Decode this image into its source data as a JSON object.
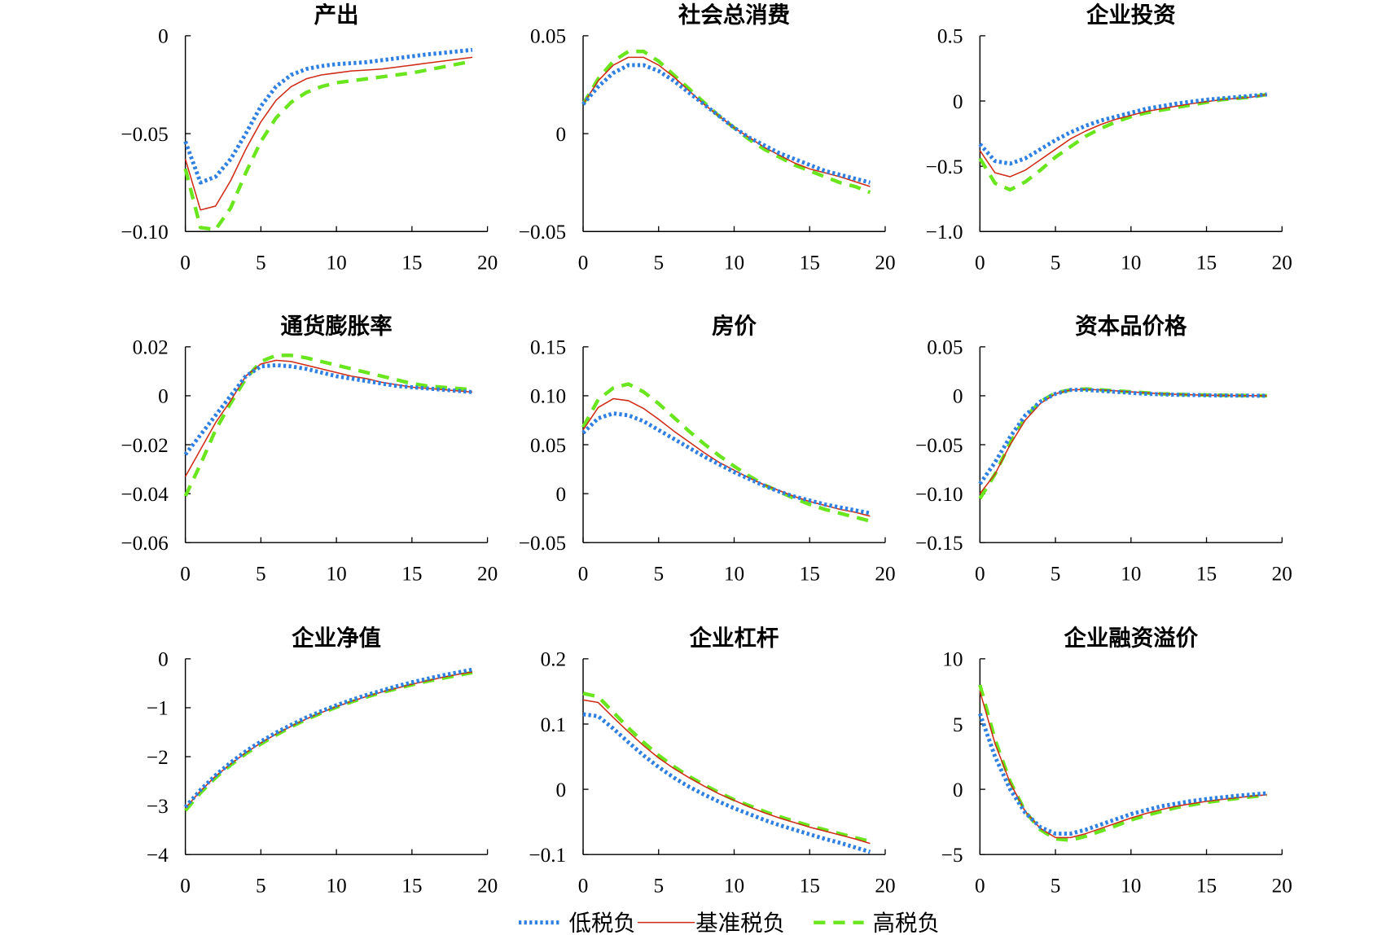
{
  "legend": [
    {
      "name": "低税负",
      "color": "#2f80e3"
    },
    {
      "name": "基准税负",
      "color": "#d02a14"
    },
    {
      "name": "高税负",
      "color": "#6ae61e"
    }
  ],
  "chart_data": [
    {
      "type": "line",
      "title": "产出",
      "x": [
        0,
        1,
        2,
        3,
        4,
        5,
        6,
        7,
        8,
        9,
        10,
        11,
        12,
        13,
        14,
        15,
        16,
        17,
        18,
        19
      ],
      "xlim": [
        0,
        20
      ],
      "xticks": [
        0,
        5,
        10,
        15,
        20
      ],
      "xtick_labels": [
        "0",
        "5",
        "10",
        "15",
        "20"
      ],
      "ylim": [
        -0.1,
        0
      ],
      "yticks": [
        0,
        -0.05,
        -0.1
      ],
      "ytick_labels": [
        "0",
        "−0.05",
        "−0.10"
      ],
      "series": [
        {
          "name": "低税负",
          "values": [
            -0.054,
            -0.075,
            -0.072,
            -0.063,
            -0.05,
            -0.036,
            -0.026,
            -0.02,
            -0.017,
            -0.0155,
            -0.0145,
            -0.014,
            -0.0135,
            -0.0125,
            -0.0115,
            -0.0105,
            -0.0095,
            -0.0088,
            -0.008,
            -0.0072
          ]
        },
        {
          "name": "基准税负",
          "values": [
            -0.063,
            -0.089,
            -0.087,
            -0.074,
            -0.058,
            -0.044,
            -0.033,
            -0.026,
            -0.022,
            -0.02,
            -0.019,
            -0.018,
            -0.0175,
            -0.017,
            -0.016,
            -0.015,
            -0.014,
            -0.013,
            -0.012,
            -0.011
          ]
        },
        {
          "name": "高税负",
          "values": [
            -0.068,
            -0.098,
            -0.099,
            -0.088,
            -0.07,
            -0.054,
            -0.042,
            -0.034,
            -0.029,
            -0.026,
            -0.024,
            -0.023,
            -0.022,
            -0.021,
            -0.02,
            -0.019,
            -0.0175,
            -0.016,
            -0.0145,
            -0.013
          ]
        }
      ]
    },
    {
      "type": "line",
      "title": "社会总消费",
      "x": [
        0,
        1,
        2,
        3,
        4,
        5,
        6,
        7,
        8,
        9,
        10,
        11,
        12,
        13,
        14,
        15,
        16,
        17,
        18,
        19
      ],
      "xlim": [
        0,
        20
      ],
      "xticks": [
        0,
        5,
        10,
        15,
        20
      ],
      "xtick_labels": [
        "0",
        "5",
        "10",
        "15",
        "20"
      ],
      "ylim": [
        -0.05,
        0.05
      ],
      "yticks": [
        0.05,
        0,
        -0.05
      ],
      "ytick_labels": [
        "0.05",
        "0",
        "−0.05"
      ],
      "series": [
        {
          "name": "低税负",
          "values": [
            0.015,
            0.024,
            0.031,
            0.035,
            0.035,
            0.032,
            0.027,
            0.021,
            0.015,
            0.009,
            0.003,
            -0.002,
            -0.006,
            -0.01,
            -0.013,
            -0.016,
            -0.019,
            -0.021,
            -0.023,
            -0.025
          ]
        },
        {
          "name": "基准税负",
          "values": [
            0.015,
            0.027,
            0.035,
            0.039,
            0.039,
            0.035,
            0.029,
            0.022,
            0.015,
            0.009,
            0.003,
            -0.002,
            -0.007,
            -0.011,
            -0.015,
            -0.018,
            -0.02,
            -0.022,
            -0.0245,
            -0.027
          ]
        },
        {
          "name": "高税负",
          "values": [
            0.015,
            0.028,
            0.037,
            0.042,
            0.042,
            0.037,
            0.03,
            0.023,
            0.016,
            0.009,
            0.003,
            -0.003,
            -0.008,
            -0.012,
            -0.016,
            -0.019,
            -0.022,
            -0.025,
            -0.027,
            -0.03
          ]
        }
      ]
    },
    {
      "type": "line",
      "title": "企业投资",
      "x": [
        0,
        1,
        2,
        3,
        4,
        5,
        6,
        7,
        8,
        9,
        10,
        11,
        12,
        13,
        14,
        15,
        16,
        17,
        18,
        19
      ],
      "xlim": [
        0,
        20
      ],
      "xticks": [
        0,
        5,
        10,
        15,
        20
      ],
      "xtick_labels": [
        "0",
        "5",
        "10",
        "15",
        "20"
      ],
      "ylim": [
        -1.0,
        0.5
      ],
      "yticks": [
        0.5,
        0,
        -0.5,
        -1.0
      ],
      "ytick_labels": [
        "0.5",
        "0",
        "−0.5",
        "−1.0"
      ],
      "series": [
        {
          "name": "低税负",
          "values": [
            -0.33,
            -0.46,
            -0.48,
            -0.44,
            -0.37,
            -0.3,
            -0.24,
            -0.19,
            -0.15,
            -0.12,
            -0.09,
            -0.06,
            -0.04,
            -0.02,
            -0.005,
            0.01,
            0.02,
            0.03,
            0.04,
            0.05
          ]
        },
        {
          "name": "基准税负",
          "values": [
            -0.38,
            -0.55,
            -0.58,
            -0.53,
            -0.45,
            -0.37,
            -0.29,
            -0.23,
            -0.18,
            -0.14,
            -0.11,
            -0.08,
            -0.06,
            -0.04,
            -0.02,
            -0.005,
            0.01,
            0.02,
            0.03,
            0.05
          ]
        },
        {
          "name": "高税负",
          "values": [
            -0.44,
            -0.63,
            -0.68,
            -0.62,
            -0.53,
            -0.43,
            -0.35,
            -0.27,
            -0.21,
            -0.16,
            -0.12,
            -0.09,
            -0.07,
            -0.05,
            -0.03,
            -0.01,
            0.01,
            0.02,
            0.03,
            0.05
          ]
        }
      ]
    },
    {
      "type": "line",
      "title": "通货膨胀率",
      "x": [
        0,
        1,
        2,
        3,
        4,
        5,
        6,
        7,
        8,
        9,
        10,
        11,
        12,
        13,
        14,
        15,
        16,
        17,
        18,
        19
      ],
      "xlim": [
        0,
        20
      ],
      "xticks": [
        0,
        5,
        10,
        15,
        20
      ],
      "xtick_labels": [
        "0",
        "5",
        "10",
        "15",
        "20"
      ],
      "ylim": [
        -0.06,
        0.02
      ],
      "yticks": [
        0.02,
        0,
        -0.02,
        -0.04,
        -0.06
      ],
      "ytick_labels": [
        "0.02",
        "0",
        "−0.02",
        "−0.04",
        "−0.06"
      ],
      "series": [
        {
          "name": "低税负",
          "values": [
            -0.024,
            -0.016,
            -0.008,
            0.0,
            0.008,
            0.012,
            0.0125,
            0.012,
            0.011,
            0.0095,
            0.008,
            0.007,
            0.006,
            0.005,
            0.004,
            0.0035,
            0.003,
            0.0025,
            0.002,
            0.0015
          ]
        },
        {
          "name": "基准税负",
          "values": [
            -0.033,
            -0.022,
            -0.011,
            -0.002,
            0.008,
            0.013,
            0.0145,
            0.014,
            0.0125,
            0.011,
            0.0095,
            0.008,
            0.007,
            0.0055,
            0.0045,
            0.0035,
            0.003,
            0.0025,
            0.002,
            0.0015
          ]
        },
        {
          "name": "高税负",
          "values": [
            -0.041,
            -0.028,
            -0.014,
            -0.003,
            0.007,
            0.014,
            0.0165,
            0.0165,
            0.0155,
            0.014,
            0.0125,
            0.011,
            0.0095,
            0.008,
            0.0065,
            0.005,
            0.004,
            0.0035,
            0.003,
            0.0025
          ]
        }
      ]
    },
    {
      "type": "line",
      "title": "房价",
      "x": [
        0,
        1,
        2,
        3,
        4,
        5,
        6,
        7,
        8,
        9,
        10,
        11,
        12,
        13,
        14,
        15,
        16,
        17,
        18,
        19
      ],
      "xlim": [
        0,
        20
      ],
      "xticks": [
        0,
        5,
        10,
        15,
        20
      ],
      "xtick_labels": [
        "0",
        "5",
        "10",
        "15",
        "20"
      ],
      "ylim": [
        -0.05,
        0.15
      ],
      "yticks": [
        0.15,
        0.1,
        0.05,
        0,
        -0.05
      ],
      "ytick_labels": [
        "0.15",
        "0.10",
        "0.05",
        "0",
        "−0.05"
      ],
      "series": [
        {
          "name": "低税负",
          "values": [
            0.062,
            0.077,
            0.082,
            0.08,
            0.074,
            0.065,
            0.056,
            0.047,
            0.038,
            0.03,
            0.022,
            0.015,
            0.008,
            0.002,
            -0.003,
            -0.007,
            -0.011,
            -0.014,
            -0.017,
            -0.02
          ]
        },
        {
          "name": "基准税负",
          "values": [
            0.065,
            0.088,
            0.097,
            0.095,
            0.087,
            0.076,
            0.064,
            0.053,
            0.042,
            0.032,
            0.024,
            0.016,
            0.009,
            0.003,
            -0.003,
            -0.008,
            -0.012,
            -0.016,
            -0.019,
            -0.023
          ]
        },
        {
          "name": "高税负",
          "values": [
            0.068,
            0.096,
            0.108,
            0.112,
            0.104,
            0.092,
            0.078,
            0.064,
            0.051,
            0.039,
            0.028,
            0.018,
            0.009,
            0.002,
            -0.005,
            -0.011,
            -0.016,
            -0.02,
            -0.024,
            -0.028
          ]
        }
      ]
    },
    {
      "type": "line",
      "title": "资本品价格",
      "x": [
        0,
        1,
        2,
        3,
        4,
        5,
        6,
        7,
        8,
        9,
        10,
        11,
        12,
        13,
        14,
        15,
        16,
        17,
        18,
        19
      ],
      "xlim": [
        0,
        20
      ],
      "xticks": [
        0,
        5,
        10,
        15,
        20
      ],
      "xtick_labels": [
        "0",
        "5",
        "10",
        "15",
        "20"
      ],
      "ylim": [
        -0.15,
        0.05
      ],
      "yticks": [
        0.05,
        0,
        -0.05,
        -0.1,
        -0.15
      ],
      "ytick_labels": [
        "0.05",
        "0",
        "−0.05",
        "−0.10",
        "−0.15"
      ],
      "series": [
        {
          "name": "低税负",
          "values": [
            -0.09,
            -0.068,
            -0.042,
            -0.02,
            -0.006,
            0.002,
            0.006,
            0.006,
            0.005,
            0.004,
            0.003,
            0.002,
            0.0015,
            0.001,
            0.0008,
            0.0005,
            0.0003,
            0.0002,
            0.0001,
            0.0
          ]
        },
        {
          "name": "基准税负",
          "values": [
            -0.1,
            -0.08,
            -0.05,
            -0.025,
            -0.008,
            0.002,
            0.006,
            0.0065,
            0.006,
            0.005,
            0.004,
            0.003,
            0.002,
            0.0015,
            0.001,
            0.0005,
            0.0003,
            0.0002,
            0.0001,
            0.0
          ]
        },
        {
          "name": "高税负",
          "values": [
            -0.105,
            -0.08,
            -0.048,
            -0.022,
            -0.006,
            0.003,
            0.006,
            0.007,
            0.006,
            0.005,
            0.004,
            0.003,
            0.002,
            0.0015,
            0.001,
            0.0008,
            0.0005,
            0.0003,
            0.0002,
            0.0001
          ]
        }
      ]
    },
    {
      "type": "line",
      "title": "企业净值",
      "x": [
        0,
        1,
        2,
        3,
        4,
        5,
        6,
        7,
        8,
        9,
        10,
        11,
        12,
        13,
        14,
        15,
        16,
        17,
        18,
        19
      ],
      "xlim": [
        0,
        20
      ],
      "xticks": [
        0,
        5,
        10,
        15,
        20
      ],
      "xtick_labels": [
        "0",
        "5",
        "10",
        "15",
        "20"
      ],
      "ylim": [
        -4,
        0
      ],
      "yticks": [
        0,
        -1,
        -2,
        -3,
        -4
      ],
      "ytick_labels": [
        "0",
        "−1",
        "−2",
        "−3",
        "−4"
      ],
      "series": [
        {
          "name": "低税负",
          "values": [
            -3.03,
            -2.68,
            -2.38,
            -2.12,
            -1.89,
            -1.69,
            -1.51,
            -1.35,
            -1.2,
            -1.07,
            -0.95,
            -0.84,
            -0.74,
            -0.65,
            -0.56,
            -0.48,
            -0.41,
            -0.34,
            -0.28,
            -0.22
          ]
        },
        {
          "name": "基准税负",
          "values": [
            -3.05,
            -2.7,
            -2.4,
            -2.15,
            -1.92,
            -1.72,
            -1.54,
            -1.38,
            -1.23,
            -1.1,
            -0.98,
            -0.87,
            -0.77,
            -0.68,
            -0.6,
            -0.52,
            -0.45,
            -0.38,
            -0.32,
            -0.27
          ]
        },
        {
          "name": "高税负",
          "values": [
            -3.1,
            -2.74,
            -2.43,
            -2.17,
            -1.94,
            -1.74,
            -1.56,
            -1.39,
            -1.24,
            -1.11,
            -0.99,
            -0.88,
            -0.78,
            -0.69,
            -0.61,
            -0.53,
            -0.46,
            -0.4,
            -0.34,
            -0.28
          ]
        }
      ]
    },
    {
      "type": "line",
      "title": "企业杠杆",
      "x": [
        0,
        1,
        2,
        3,
        4,
        5,
        6,
        7,
        8,
        9,
        10,
        11,
        12,
        13,
        14,
        15,
        16,
        17,
        18,
        19
      ],
      "xlim": [
        0,
        20
      ],
      "xticks": [
        0,
        5,
        10,
        15,
        20
      ],
      "xtick_labels": [
        "0",
        "5",
        "10",
        "15",
        "20"
      ],
      "ylim": [
        -0.1,
        0.2
      ],
      "yticks": [
        0.2,
        0.1,
        0,
        -0.1
      ],
      "ytick_labels": [
        "0.2",
        "0.1",
        "0",
        "−0.1"
      ],
      "series": [
        {
          "name": "低税负",
          "values": [
            0.115,
            0.112,
            0.093,
            0.072,
            0.052,
            0.034,
            0.018,
            0.004,
            -0.008,
            -0.019,
            -0.029,
            -0.038,
            -0.047,
            -0.055,
            -0.062,
            -0.069,
            -0.076,
            -0.082,
            -0.089,
            -0.096
          ]
        },
        {
          "name": "基准税负",
          "values": [
            0.137,
            0.133,
            0.11,
            0.088,
            0.067,
            0.048,
            0.032,
            0.018,
            0.005,
            -0.007,
            -0.017,
            -0.027,
            -0.036,
            -0.044,
            -0.051,
            -0.058,
            -0.064,
            -0.07,
            -0.076,
            -0.083
          ]
        },
        {
          "name": "高税负",
          "values": [
            0.147,
            0.142,
            0.118,
            0.094,
            0.072,
            0.052,
            0.035,
            0.02,
            0.007,
            -0.005,
            -0.016,
            -0.025,
            -0.034,
            -0.042,
            -0.049,
            -0.056,
            -0.062,
            -0.068,
            -0.074,
            -0.08
          ]
        }
      ]
    },
    {
      "type": "line",
      "title": "企业融资溢价",
      "x": [
        0,
        1,
        2,
        3,
        4,
        5,
        6,
        7,
        8,
        9,
        10,
        11,
        12,
        13,
        14,
        15,
        16,
        17,
        18,
        19
      ],
      "xlim": [
        0,
        20
      ],
      "xticks": [
        0,
        5,
        10,
        15,
        20
      ],
      "xtick_labels": [
        "0",
        "5",
        "10",
        "15",
        "20"
      ],
      "ylim": [
        -5,
        10
      ],
      "yticks": [
        10,
        5,
        0,
        -5
      ],
      "ytick_labels": [
        "10",
        "5",
        "0",
        "−5"
      ],
      "series": [
        {
          "name": "低税负",
          "values": [
            5.8,
            2.5,
            0.0,
            -1.8,
            -2.9,
            -3.4,
            -3.4,
            -3.1,
            -2.7,
            -2.3,
            -1.9,
            -1.6,
            -1.3,
            -1.1,
            -0.9,
            -0.75,
            -0.62,
            -0.5,
            -0.4,
            -0.3
          ]
        },
        {
          "name": "基准税负",
          "values": [
            7.5,
            3.5,
            0.5,
            -1.7,
            -3.0,
            -3.7,
            -3.7,
            -3.4,
            -3.0,
            -2.6,
            -2.2,
            -1.85,
            -1.55,
            -1.3,
            -1.1,
            -0.92,
            -0.78,
            -0.65,
            -0.52,
            -0.42
          ]
        },
        {
          "name": "高税负",
          "values": [
            8.0,
            3.8,
            0.6,
            -1.7,
            -3.1,
            -3.8,
            -3.9,
            -3.6,
            -3.2,
            -2.8,
            -2.35,
            -2.0,
            -1.7,
            -1.4,
            -1.2,
            -1.0,
            -0.85,
            -0.7,
            -0.57,
            -0.45
          ]
        }
      ]
    }
  ]
}
